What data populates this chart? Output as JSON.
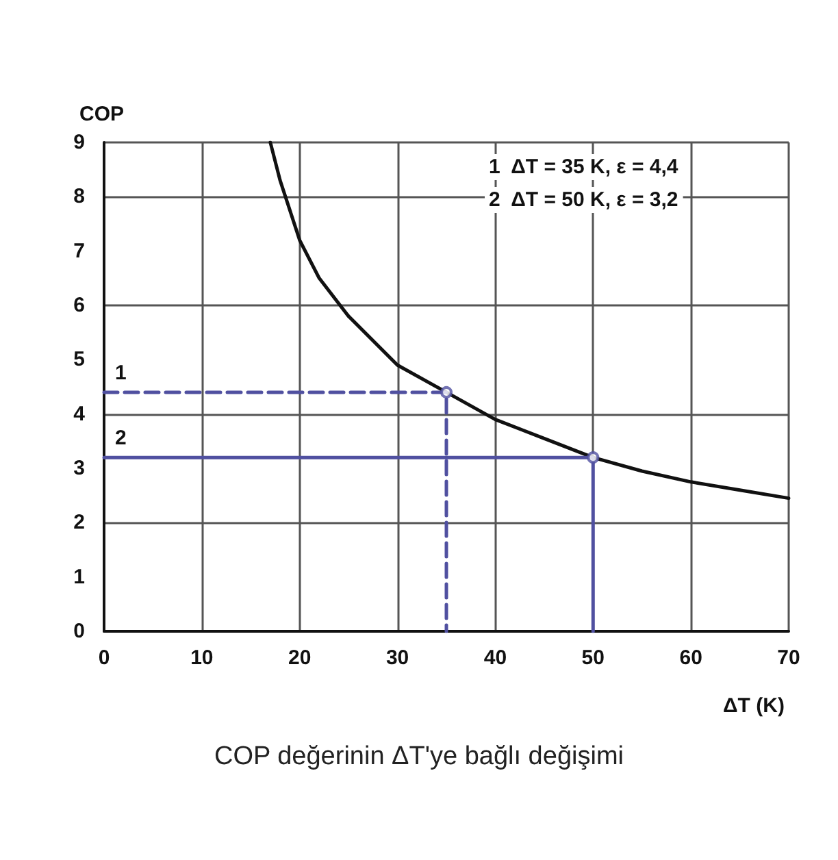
{
  "chart_data": {
    "type": "line",
    "title": "COP değerinin ΔT'ye bağlı değişimi",
    "xlabel": "ΔT (K)",
    "ylabel": "COP",
    "xlim": [
      0,
      70
    ],
    "xticks": [
      0,
      10,
      20,
      30,
      40,
      50,
      60,
      70
    ],
    "ylim": [
      0,
      9
    ],
    "yticks": [
      0,
      1,
      2,
      3,
      4,
      5,
      6,
      7,
      8,
      9
    ],
    "grid": true,
    "series": [
      {
        "color": "#111111",
        "line_style": "solid",
        "x": [
          17,
          18,
          20,
          22,
          25,
          30,
          35,
          40,
          45,
          50,
          55,
          60,
          65,
          70
        ],
        "values": [
          9,
          8.3,
          7.2,
          6.5,
          5.8,
          4.9,
          4.4,
          3.9,
          3.55,
          3.2,
          2.95,
          2.75,
          2.6,
          2.45
        ]
      },
      {
        "color": "#5050a0",
        "line_style": "dashed",
        "x": [
          0,
          35,
          35
        ],
        "values": [
          4.4,
          4.4,
          0
        ]
      },
      {
        "color": "#5050a0",
        "line_style": "solid",
        "x": [
          0,
          50,
          50
        ],
        "values": [
          3.2,
          3.2,
          0
        ]
      },
      {
        "type": "scatter",
        "marker": "circle",
        "color": "#5050a0",
        "x": [
          35,
          50
        ],
        "values": [
          4.4,
          3.2
        ]
      }
    ],
    "annotations": [
      "1",
      "2",
      "1  ΔT = 35 K, ε = 4,4",
      "2  ΔT = 50 K, ε = 3,2"
    ]
  }
}
